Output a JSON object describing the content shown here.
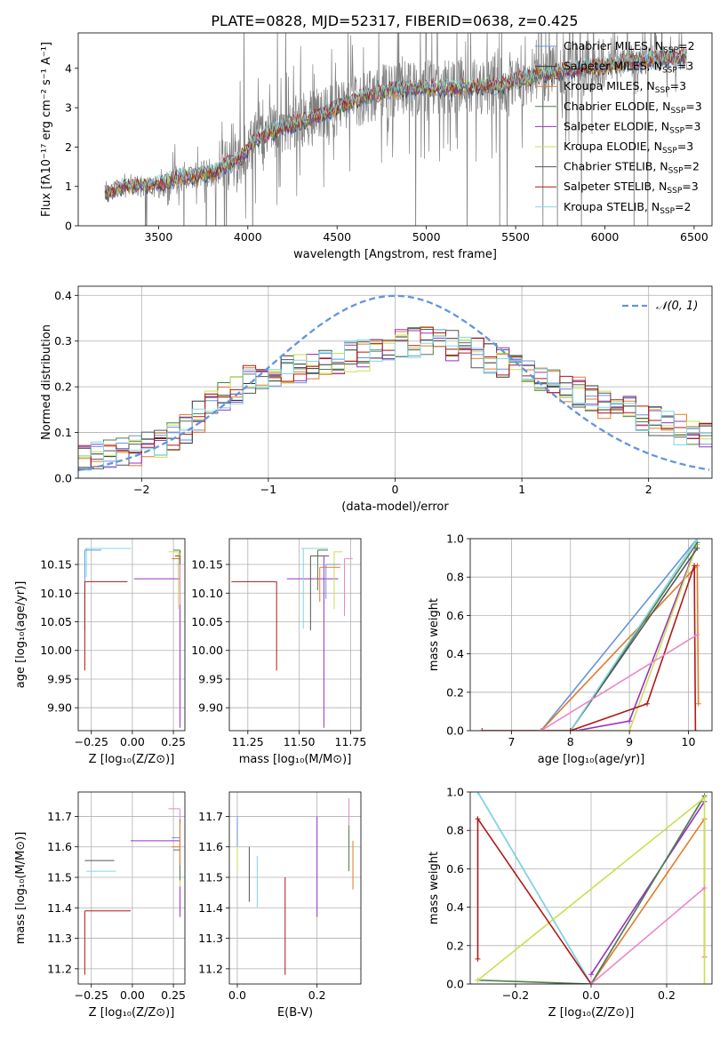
{
  "figure": {
    "title": "PLATE=0828, MJD=52317, FIBERID=0638, z=0.425"
  },
  "colors": {
    "Chabrier MILES": "#6495dc",
    "Salpeter MILES": "#333333",
    "Kroupa MILES": "#e07b2a",
    "Chabrier ELODIE": "#4f7f4f",
    "Salpeter ELODIE": "#9b30c0",
    "Kroupa ELODIE": "#c8e050",
    "Chabrier STELIB": "#555555",
    "Salpeter STELIB": "#b01818",
    "Kroupa STELIB": "#80d8e0",
    "pink": "#e888c8",
    "data": "#808080"
  },
  "chart_data": [
    {
      "id": "spectrum",
      "type": "line",
      "xlabel": "wavelength [Angstrom, rest frame]",
      "ylabel": "Flux [fλ10⁻¹⁷ erg cm⁻² s⁻¹ A⁻¹]",
      "xlim": [
        3050,
        6600
      ],
      "ylim": [
        0,
        4.9
      ],
      "xticks": [
        3500,
        4000,
        4500,
        5000,
        5500,
        6000,
        6500
      ],
      "yticks": [
        0,
        1,
        2,
        3,
        4
      ],
      "continuum": {
        "x": [
          3200,
          3300,
          3500,
          3600,
          3800,
          3950,
          4050,
          4200,
          4400,
          4600,
          4800,
          5000,
          5200,
          5400,
          5600,
          5800,
          6000,
          6200,
          6450
        ],
        "y": [
          0.8,
          1.0,
          1.05,
          1.2,
          1.35,
          1.7,
          2.2,
          2.5,
          2.8,
          3.2,
          3.45,
          3.5,
          3.5,
          3.55,
          3.8,
          3.95,
          4.05,
          4.2,
          4.3
        ]
      },
      "legend": [
        {
          "label": "Chabrier MILES, N",
          "sub": "SSP",
          "value": "=2"
        },
        {
          "label": "Salpeter MILES, N",
          "sub": "SSP",
          "value": "=3"
        },
        {
          "label": "Kroupa MILES, N",
          "sub": "SSP",
          "value": "=3"
        },
        {
          "label": "Chabrier ELODIE, N",
          "sub": "SSP",
          "value": "=3"
        },
        {
          "label": "Salpeter ELODIE, N",
          "sub": "SSP",
          "value": "=3"
        },
        {
          "label": "Kroupa ELODIE, N",
          "sub": "SSP",
          "value": "=3"
        },
        {
          "label": "Chabrier STELIB, N",
          "sub": "SSP",
          "value": "=2"
        },
        {
          "label": "Salpeter STELIB, N",
          "sub": "SSP",
          "value": "=3"
        },
        {
          "label": "Kroupa STELIB, N",
          "sub": "SSP",
          "value": "=2"
        }
      ],
      "legend_placement": "upper-right"
    },
    {
      "id": "residuals",
      "type": "line",
      "xlabel": "(data-model)/error",
      "ylabel": "Normed distribution",
      "xlim": [
        -2.5,
        2.5
      ],
      "ylim": [
        0,
        0.42
      ],
      "xticks": [
        -2,
        -1,
        0,
        1,
        2
      ],
      "yticks": [
        0.0,
        0.1,
        0.2,
        0.3,
        0.4
      ],
      "grid": true,
      "bin_width": 0.1,
      "histogram_envelope": {
        "x": [
          -2.5,
          -2.0,
          -1.7,
          -1.4,
          -1.1,
          -0.8,
          -0.5,
          -0.2,
          0.0,
          0.3,
          0.6,
          0.9,
          1.2,
          1.5,
          1.8,
          2.1,
          2.5
        ],
        "y": [
          0.04,
          0.06,
          0.1,
          0.17,
          0.22,
          0.24,
          0.26,
          0.27,
          0.29,
          0.3,
          0.28,
          0.25,
          0.22,
          0.18,
          0.15,
          0.12,
          0.08
        ]
      },
      "normal_curve": {
        "label": "𝒩(0, 1)",
        "mean": 0,
        "std": 1
      },
      "legend_placement": "upper-right"
    },
    {
      "id": "age_vs_Z",
      "type": "scatter",
      "xlabel": "Z [log₁₀(Z/Z⊙)]",
      "ylabel": "age  [log₁₀(age/yr)]",
      "xlim": [
        -0.33,
        0.32
      ],
      "ylim": [
        9.86,
        10.195
      ],
      "xticks": [
        -0.25,
        0.0,
        0.25
      ],
      "xticklabels": [
        "−0.25",
        "0.00",
        "0.25"
      ],
      "yticks": [
        9.9,
        9.95,
        10.0,
        10.05,
        10.1,
        10.15
      ],
      "grid": true,
      "points": [
        {
          "model": "Kroupa STELIB",
          "x": -0.28,
          "y": 10.178,
          "xerr": [
            0.01,
            0.27
          ],
          "yerr": [
            0.05,
            0.0
          ]
        },
        {
          "model": "Chabrier MILES",
          "x": -0.29,
          "y": 10.175,
          "xerr": [
            0.0,
            0.1
          ],
          "yerr": [
            0.14,
            0.0
          ]
        },
        {
          "model": "Salpeter STELIB",
          "x": -0.29,
          "y": 10.12,
          "xerr": [
            0.0,
            0.26
          ],
          "yerr": [
            0.155,
            0.0
          ]
        },
        {
          "model": "Salpeter ELODIE",
          "x": 0.29,
          "y": 10.125,
          "xerr": [
            0.28,
            0.0
          ],
          "yerr": [
            0.26,
            0.05
          ]
        },
        {
          "model": "Kroupa ELODIE",
          "x": 0.28,
          "y": 10.172,
          "xerr": [
            0.06,
            0.02
          ],
          "yerr": [
            0.1,
            0.0
          ]
        },
        {
          "model": "Chabrier ELODIE",
          "x": 0.29,
          "y": 10.175,
          "xerr": [
            0.04,
            0.0
          ],
          "yerr": [
            0.06,
            0.0
          ]
        },
        {
          "model": "Kroupa MILES",
          "x": 0.29,
          "y": 10.16,
          "xerr": [
            0.05,
            0.0
          ],
          "yerr": [
            0.06,
            0.01
          ]
        },
        {
          "model": "Chabrier STELIB",
          "x": 0.29,
          "y": 10.165,
          "xerr": [
            0.03,
            0.0
          ],
          "yerr": [
            0.06,
            0.0
          ]
        },
        {
          "model": "pink",
          "x": 0.29,
          "y": 10.15,
          "xerr": [
            0.02,
            0.0
          ],
          "yerr": [
            0.07,
            0.0
          ]
        }
      ]
    },
    {
      "id": "age_vs_mass",
      "type": "scatter",
      "xlabel": "mass [log₁₀(M/M⊙)]",
      "ylabel": "",
      "xlim": [
        11.16,
        11.8
      ],
      "ylim": [
        9.86,
        10.195
      ],
      "xticks": [
        11.25,
        11.5,
        11.75
      ],
      "yticks": [
        9.9,
        9.95,
        10.0,
        10.05,
        10.1,
        10.15
      ],
      "grid": true,
      "points": [
        {
          "model": "Salpeter STELIB",
          "x": 11.39,
          "y": 10.12,
          "xerr": [
            0.22,
            0.0
          ],
          "yerr": [
            0.155,
            0.0
          ]
        },
        {
          "model": "Salpeter ELODIE",
          "x": 11.62,
          "y": 10.125,
          "xerr": [
            0.18,
            0.07
          ],
          "yerr": [
            0.26,
            0.04
          ]
        },
        {
          "model": "Kroupa STELIB",
          "x": 11.52,
          "y": 10.178,
          "xerr": [
            0.01,
            0.12
          ],
          "yerr": [
            0.14,
            0.0
          ]
        },
        {
          "model": "Chabrier STELIB",
          "x": 11.555,
          "y": 10.165,
          "xerr": [
            0.0,
            0.09
          ],
          "yerr": [
            0.13,
            0.0
          ]
        },
        {
          "model": "Kroupa ELODIE",
          "x": 11.67,
          "y": 10.172,
          "xerr": [
            0.0,
            0.04
          ],
          "yerr": [
            0.1,
            0.0
          ]
        },
        {
          "model": "Kroupa MILES",
          "x": 11.6,
          "y": 10.145,
          "xerr": [
            0.0,
            0.1
          ],
          "yerr": [
            0.06,
            0.0
          ]
        },
        {
          "model": "Chabrier MILES",
          "x": 11.63,
          "y": 10.15,
          "xerr": [
            0.0,
            0.07
          ],
          "yerr": [
            0.06,
            0.0
          ]
        },
        {
          "model": "pink",
          "x": 11.72,
          "y": 10.16,
          "xerr": [
            0.0,
            0.04
          ],
          "yerr": [
            0.1,
            0.0
          ]
        },
        {
          "model": "Chabrier ELODIE",
          "x": 11.59,
          "y": 10.175,
          "xerr": [
            0.0,
            0.05
          ],
          "yerr": [
            0.07,
            0.0
          ]
        }
      ]
    },
    {
      "id": "weight_vs_age",
      "type": "line",
      "xlabel": "age  [log₁₀(age/yr)]",
      "ylabel": "mass weight",
      "xlim": [
        6.3,
        10.4
      ],
      "ylim": [
        0.0,
        1.0
      ],
      "xticks": [
        7,
        8,
        9,
        10
      ],
      "yticks": [
        0.0,
        0.2,
        0.4,
        0.6,
        0.8,
        1.0
      ],
      "grid": true,
      "series": [
        {
          "model": "Chabrier MILES",
          "x": [
            7.5,
            10.15
          ],
          "y": [
            0.0,
            1.0
          ]
        },
        {
          "model": "Kroupa MILES",
          "x": [
            7.5,
            10.15,
            10.17
          ],
          "y": [
            0.0,
            0.86,
            0.14
          ]
        },
        {
          "model": "Salpeter ELODIE",
          "x": [
            8.1,
            9.0,
            10.12
          ],
          "y": [
            0.0,
            0.05,
            0.95
          ]
        },
        {
          "model": "Kroupa ELODIE",
          "x": [
            8.0,
            9.0,
            10.15
          ],
          "y": [
            0.0,
            0.0,
            0.97
          ]
        },
        {
          "model": "Chabrier ELODIE",
          "x": [
            8.0,
            10.15
          ],
          "y": [
            0.0,
            0.98
          ]
        },
        {
          "model": "Chabrier STELIB",
          "x": [
            8.0,
            10.15
          ],
          "y": [
            0.0,
            0.95
          ]
        },
        {
          "model": "Kroupa STELIB",
          "x": [
            8.0,
            10.15
          ],
          "y": [
            0.0,
            1.0
          ]
        },
        {
          "model": "Salpeter STELIB",
          "x": [
            6.5,
            8.0,
            9.3,
            10.1,
            10.12
          ],
          "y": [
            0.0,
            0.0,
            0.14,
            0.86,
            0.0
          ]
        },
        {
          "model": "pink",
          "x": [
            7.5,
            10.15
          ],
          "y": [
            0.0,
            0.5
          ]
        }
      ]
    },
    {
      "id": "mass_vs_Z",
      "type": "scatter",
      "xlabel": "Z [log₁₀(Z/Z⊙)]",
      "ylabel": "mass [log₁₀(M/M⊙)]",
      "xlim": [
        -0.33,
        0.32
      ],
      "ylim": [
        11.15,
        11.78
      ],
      "xticks": [
        -0.25,
        0.0,
        0.25
      ],
      "xticklabels": [
        "−0.25",
        "0.00",
        "0.25"
      ],
      "yticks": [
        11.2,
        11.3,
        11.4,
        11.5,
        11.6,
        11.7
      ],
      "grid": true,
      "points": [
        {
          "model": "Chabrier STELIB",
          "x": -0.29,
          "y": 11.555,
          "xerr": [
            0.0,
            0.18
          ],
          "yerr": [
            0.0,
            0.0
          ]
        },
        {
          "model": "Kroupa STELIB",
          "x": -0.28,
          "y": 11.52,
          "xerr": [
            0.0,
            0.18
          ],
          "yerr": [
            0.0,
            0.0
          ]
        },
        {
          "model": "Salpeter STELIB",
          "x": -0.29,
          "y": 11.39,
          "xerr": [
            0.0,
            0.28
          ],
          "yerr": [
            0.21,
            0.0
          ]
        },
        {
          "model": "Salpeter ELODIE",
          "x": 0.29,
          "y": 11.62,
          "xerr": [
            0.3,
            0.0
          ],
          "yerr": [
            0.25,
            0.0
          ]
        },
        {
          "model": "pink",
          "x": 0.29,
          "y": 11.725,
          "xerr": [
            0.07,
            0.0
          ],
          "yerr": [
            0.2,
            0.0
          ]
        },
        {
          "model": "Chabrier MILES",
          "x": 0.29,
          "y": 11.63,
          "xerr": [
            0.05,
            0.0
          ],
          "yerr": [
            0.0,
            0.0
          ]
        },
        {
          "model": "Kroupa ELODIE",
          "x": 0.29,
          "y": 11.67,
          "xerr": [
            0.0,
            0.0
          ],
          "yerr": [
            0.2,
            0.0
          ]
        },
        {
          "model": "Chabrier ELODIE",
          "x": 0.29,
          "y": 11.59,
          "xerr": [
            0.04,
            0.0
          ],
          "yerr": [
            0.1,
            0.1
          ]
        },
        {
          "model": "Kroupa MILES",
          "x": 0.29,
          "y": 11.6,
          "xerr": [
            0.05,
            0.0
          ],
          "yerr": [
            0.06,
            0.08
          ]
        }
      ]
    },
    {
      "id": "mass_vs_ebv",
      "type": "scatter",
      "xlabel": "E(B-V)",
      "ylabel": "",
      "xlim": [
        -0.02,
        0.31
      ],
      "ylim": [
        11.15,
        11.78
      ],
      "xticks": [
        0.0,
        0.2
      ],
      "yticks": [
        11.2,
        11.3,
        11.4,
        11.5,
        11.6,
        11.7
      ],
      "grid": true,
      "points": [
        {
          "model": "Kroupa ELODIE",
          "x": 0.0,
          "y": 11.62,
          "yerr": [
            0.1,
            0.06
          ]
        },
        {
          "model": "Chabrier MILES",
          "x": 0.0,
          "y": 11.65,
          "yerr": [
            0.05,
            0.05
          ]
        },
        {
          "model": "Chabrier STELIB",
          "x": 0.03,
          "y": 11.51,
          "yerr": [
            0.09,
            0.09
          ]
        },
        {
          "model": "Kroupa STELIB",
          "x": 0.05,
          "y": 11.48,
          "yerr": [
            0.08,
            0.09
          ]
        },
        {
          "model": "Salpeter STELIB",
          "x": 0.12,
          "y": 11.34,
          "yerr": [
            0.16,
            0.16
          ]
        },
        {
          "model": "Salpeter ELODIE",
          "x": 0.2,
          "y": 11.59,
          "yerr": [
            0.22,
            0.11
          ]
        },
        {
          "model": "pink",
          "x": 0.28,
          "y": 11.66,
          "yerr": [
            0.13,
            0.1
          ]
        },
        {
          "model": "Chabrier ELODIE",
          "x": 0.28,
          "y": 11.6,
          "yerr": [
            0.08,
            0.07
          ]
        },
        {
          "model": "Kroupa MILES",
          "x": 0.29,
          "y": 11.54,
          "yerr": [
            0.08,
            0.08
          ]
        }
      ]
    },
    {
      "id": "weight_vs_Z",
      "type": "line",
      "xlabel": "Z [log₁₀(Z/Z⊙)]",
      "ylabel": "mass weight",
      "xlim": [
        -0.32,
        0.32
      ],
      "ylim": [
        0.0,
        1.0
      ],
      "xticks": [
        -0.2,
        0.0,
        0.2
      ],
      "xticklabels": [
        "−0.2",
        "0.0",
        "0.2"
      ],
      "yticks": [
        0.0,
        0.2,
        0.4,
        0.6,
        0.8,
        1.0
      ],
      "grid": true,
      "series": [
        {
          "model": "Chabrier MILES",
          "x": [
            -0.3,
            0.0,
            0.3
          ],
          "y": [
            1.0,
            0.0,
            0.98
          ]
        },
        {
          "model": "Kroupa STELIB",
          "x": [
            -0.3,
            0.0
          ],
          "y": [
            1.0,
            0.0
          ]
        },
        {
          "model": "Kroupa MILES",
          "x": [
            0.0,
            0.3,
            0.3
          ],
          "y": [
            0.0,
            0.86,
            0.14
          ]
        },
        {
          "model": "Salpeter ELODIE",
          "x": [
            0.0,
            0.3
          ],
          "y": [
            0.05,
            0.95
          ]
        },
        {
          "model": "Chabrier ELODIE",
          "x": [
            -0.3,
            0.0,
            0.3
          ],
          "y": [
            0.02,
            0.0,
            0.98
          ]
        },
        {
          "model": "Kroupa ELODIE",
          "x": [
            -0.3,
            0.3,
            0.3
          ],
          "y": [
            0.02,
            0.97,
            0.0
          ]
        },
        {
          "model": "Salpeter STELIB",
          "x": [
            -0.3,
            -0.3,
            0.0
          ],
          "y": [
            0.13,
            0.86,
            0.0
          ]
        },
        {
          "model": "pink",
          "x": [
            0.0,
            0.3
          ],
          "y": [
            0.0,
            0.5
          ]
        }
      ]
    }
  ]
}
